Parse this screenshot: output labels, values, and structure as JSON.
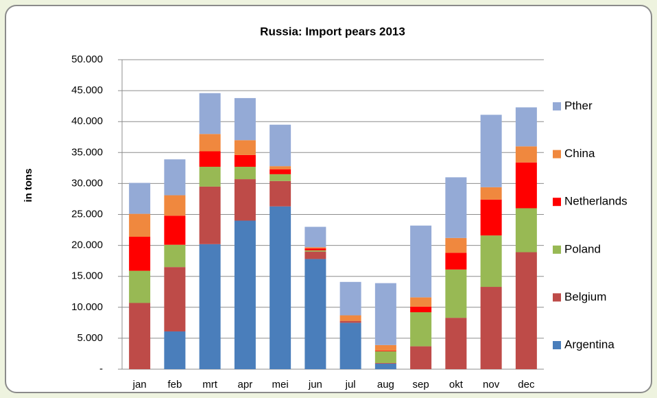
{
  "chart_data": {
    "type": "stacked_bar",
    "title": "Russia: Import pears 2013",
    "y_label": "in  tons",
    "categories": [
      "jan",
      "feb",
      "mrt",
      "apr",
      "mei",
      "jun",
      "jul",
      "aug",
      "sep",
      "okt",
      "nov",
      "dec"
    ],
    "series": [
      {
        "name": "Argentina",
        "color": "#4a7ebb",
        "values": [
          0,
          6100,
          20200,
          24000,
          26300,
          17800,
          7500,
          900,
          0,
          0,
          0,
          0
        ]
      },
      {
        "name": "Belgium",
        "color": "#be4b48",
        "values": [
          10700,
          10400,
          9300,
          6700,
          4100,
          1200,
          300,
          100,
          3700,
          8300,
          13300,
          18900
        ]
      },
      {
        "name": "Poland",
        "color": "#98b954",
        "values": [
          5200,
          3600,
          3200,
          2000,
          1100,
          200,
          0,
          1900,
          5500,
          7800,
          8300,
          7100
        ]
      },
      {
        "name": "Netherlands",
        "color": "#ff0000",
        "values": [
          5500,
          4700,
          2500,
          1900,
          800,
          300,
          0,
          100,
          900,
          2700,
          5800,
          7400
        ]
      },
      {
        "name": "China",
        "color": "#f0883e",
        "values": [
          3700,
          3300,
          2800,
          2400,
          500,
          200,
          900,
          900,
          1500,
          2400,
          2000,
          2600
        ]
      },
      {
        "name": "Pther",
        "color": "#94aad6",
        "values": [
          5000,
          5800,
          6600,
          6800,
          6700,
          3300,
          5400,
          10000,
          11600,
          9800,
          11700,
          6300
        ]
      }
    ],
    "ylim": [
      0,
      50000
    ],
    "yticks": [
      {
        "value": 0,
        "label": "-"
      },
      {
        "value": 5000,
        "label": "5.000"
      },
      {
        "value": 10000,
        "label": "10.000"
      },
      {
        "value": 15000,
        "label": "15.000"
      },
      {
        "value": 20000,
        "label": "20.000"
      },
      {
        "value": 25000,
        "label": "25.000"
      },
      {
        "value": 30000,
        "label": "30.000"
      },
      {
        "value": 35000,
        "label": "35.000"
      },
      {
        "value": 40000,
        "label": "40.000"
      },
      {
        "value": 45000,
        "label": "45.000"
      },
      {
        "value": 50000,
        "label": "50.000"
      }
    ],
    "grid": true,
    "legend": "right"
  }
}
